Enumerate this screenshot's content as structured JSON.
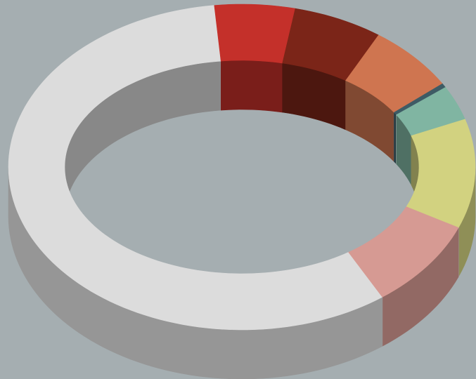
{
  "background": "#a5aeb1",
  "chart_data": {
    "type": "pie",
    "variant": "3d-donut",
    "title": "",
    "legend": "none",
    "data_labels": "none",
    "values": [
      56.7,
      5.4,
      6.1,
      6.3,
      0.4,
      3.3,
      10.5,
      8.4
    ],
    "colors": [
      "#dcdcdc",
      "#c4302a",
      "#7b2518",
      "#cf7550",
      "#3e5b65",
      "#80b5a2",
      "#d2d280",
      "#d69a93"
    ]
  }
}
